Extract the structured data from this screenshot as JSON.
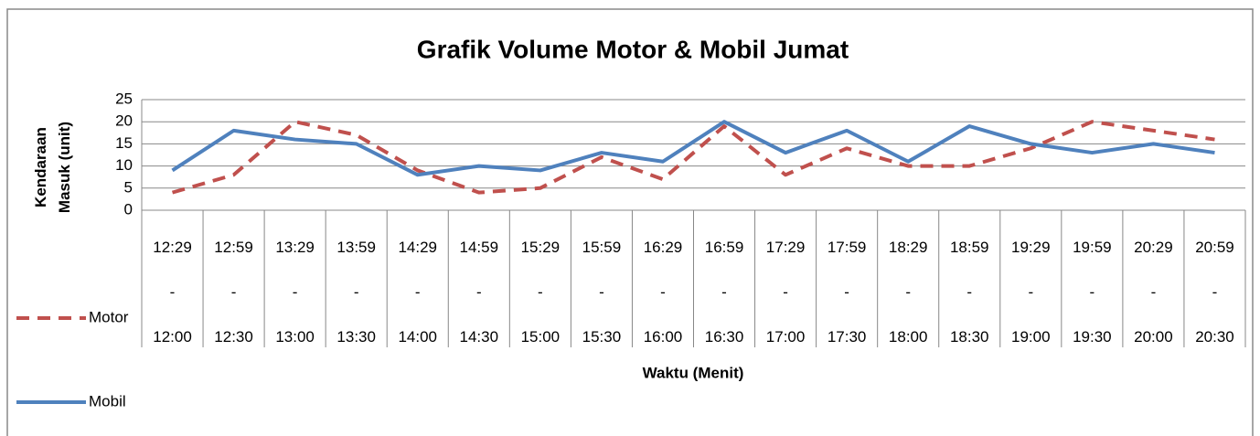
{
  "chart_data": {
    "type": "line",
    "title": "Grafik Volume Motor & Mobil Jumat",
    "xlabel": "Waktu (Menit)",
    "ylabel": "Kendaraan Masuk (unit)",
    "categories": [
      "12:29 - 12:00",
      "12:59 - 12:30",
      "13:29 - 13:00",
      "13:59 - 13:30",
      "14:29 - 14:00",
      "14:59 - 14:30",
      "15:29 - 15:00",
      "15:59 - 15:30",
      "16:29 - 16:00",
      "16:59 - 16:30",
      "17:29 - 17:00",
      "17:59 - 17:30",
      "18:29 - 18:00",
      "18:59 - 18:30",
      "19:29 - 19:00",
      "19:59 - 19:30",
      "20:29 - 20:00",
      "20:59 - 20:30"
    ],
    "series": [
      {
        "name": "Motor",
        "color": "#c0504d",
        "dashed": true,
        "values": [
          4,
          8,
          20,
          17,
          9,
          4,
          5,
          12,
          7,
          19,
          8,
          14,
          10,
          10,
          14,
          20,
          18,
          16
        ]
      },
      {
        "name": "Mobil",
        "color": "#4f81bd",
        "dashed": false,
        "values": [
          9,
          18,
          16,
          15,
          8,
          10,
          9,
          13,
          11,
          20,
          13,
          18,
          11,
          19,
          15,
          13,
          15,
          13
        ]
      }
    ],
    "ylim": [
      0,
      25
    ],
    "yticks": [
      0,
      5,
      10,
      15,
      20,
      25
    ],
    "grid": true,
    "legend": "left"
  }
}
